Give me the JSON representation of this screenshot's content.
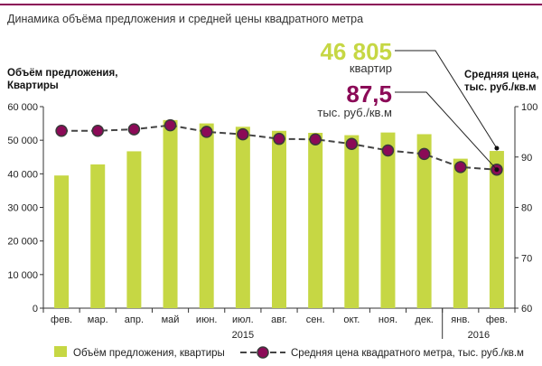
{
  "title": "Динамика объёма предложения и средней цены квадратного метра",
  "left_axis_label_1": "Объём предложения,",
  "left_axis_label_2": "Квартиры",
  "right_axis_label_1": "Средняя цена,",
  "right_axis_label_2": "тыс. руб./кв.м",
  "callout_volume_value": "46 805",
  "callout_volume_unit": "квартир",
  "callout_price_value": "87,5",
  "callout_price_unit": "тыс. руб./кв.м",
  "colors": {
    "bar": "#c6d744",
    "line_marker": "#8b0a57",
    "line": "#444444",
    "accent": "#8b0a57"
  },
  "chart_data": {
    "type": "bar",
    "categories": [
      "фев.",
      "мар.",
      "апр.",
      "май",
      "июн.",
      "июл.",
      "авг.",
      "сен.",
      "окт.",
      "ноя.",
      "дек.",
      "янв.",
      "фев."
    ],
    "year_labels": [
      "2015",
      "2016"
    ],
    "series": [
      {
        "name": "Объём предложения, квартиры",
        "type": "bar",
        "axis": "left",
        "values": [
          39500,
          42800,
          46700,
          56000,
          55000,
          54000,
          52800,
          52200,
          51500,
          52300,
          51800,
          44500,
          46805
        ]
      },
      {
        "name": "Средняя цена квадратного метра, тыс. руб./кв.м",
        "type": "line",
        "axis": "right",
        "values": [
          95.2,
          95.2,
          95.5,
          96.3,
          95.0,
          94.5,
          93.6,
          93.5,
          92.6,
          91.3,
          90.6,
          88.0,
          87.5
        ]
      }
    ],
    "y_left": {
      "range": [
        0,
        60000
      ],
      "ticks": [
        "0",
        "10 000",
        "20 000",
        "30 000",
        "40 000",
        "50 000",
        "60 000"
      ]
    },
    "y_right": {
      "range": [
        60,
        100
      ],
      "ticks": [
        "60",
        "70",
        "80",
        "90",
        "100"
      ]
    },
    "grid": false,
    "legend_position": "bottom"
  }
}
